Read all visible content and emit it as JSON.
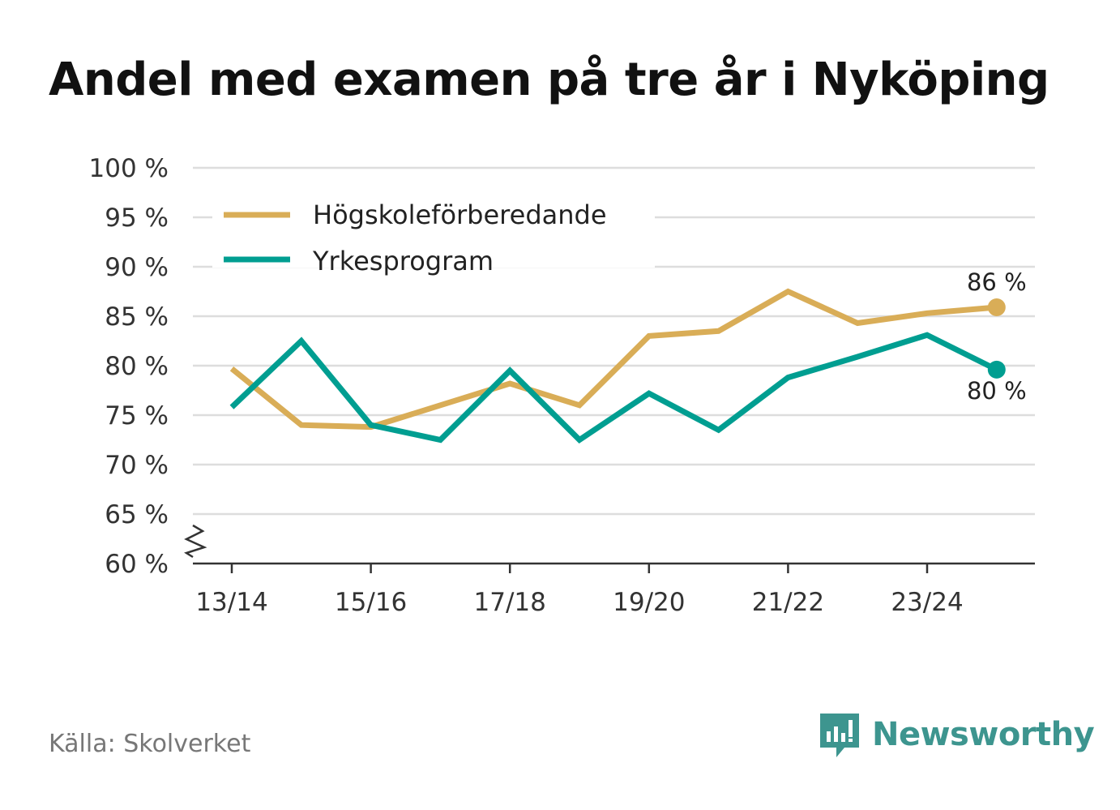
{
  "header": {
    "title": "Andel med examen på tre år i Nyköping"
  },
  "footer": {
    "source": "Källa: Skolverket",
    "brand": "Newsworthy"
  },
  "colors": {
    "hogskole": "#d9ad57",
    "yrkes": "#009e91",
    "grid": "#dddddd",
    "axis": "#333333",
    "brand": "#3d958f"
  },
  "chart_data": {
    "type": "line",
    "title": "Andel med examen på tre år i Nyköping",
    "xlabel": "",
    "ylabel": "",
    "ylim": [
      60,
      100
    ],
    "y_ticks": [
      60,
      65,
      70,
      75,
      80,
      85,
      90,
      95,
      100
    ],
    "y_tick_labels": [
      "60 %",
      "65 %",
      "70 %",
      "75 %",
      "80 %",
      "85 %",
      "90 %",
      "95 %",
      "100 %"
    ],
    "x": [
      "13/14",
      "14/15",
      "15/16",
      "16/17",
      "17/18",
      "18/19",
      "19/20",
      "20/21",
      "21/22",
      "22/23",
      "23/24",
      "24/25"
    ],
    "x_tick_labels": [
      "13/14",
      "15/16",
      "17/18",
      "19/20",
      "21/22",
      "23/24"
    ],
    "axis_break": true,
    "grid": true,
    "legend_position": "top-left",
    "series": [
      {
        "name": "Högskoleförberedande",
        "color": "#d9ad57",
        "values": [
          79.7,
          74.0,
          73.8,
          76.0,
          78.2,
          76.0,
          83.0,
          83.5,
          87.5,
          84.3,
          85.3,
          85.9
        ],
        "end_label": "86 %"
      },
      {
        "name": "Yrkesprogram",
        "color": "#009e91",
        "values": [
          75.8,
          82.5,
          74.0,
          72.5,
          79.5,
          72.5,
          77.2,
          73.5,
          78.8,
          80.9,
          83.1,
          79.6
        ],
        "end_label": "80 %"
      }
    ]
  }
}
